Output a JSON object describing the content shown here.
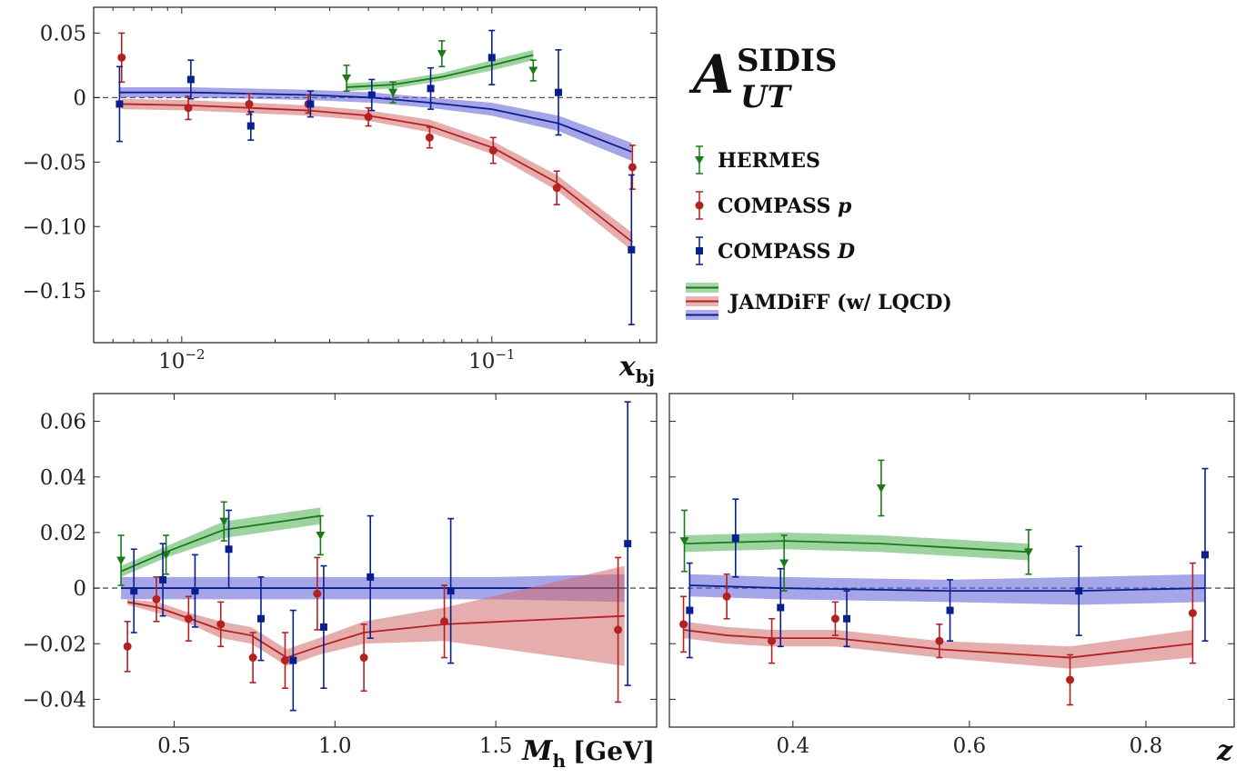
{
  "title": {
    "main": "A",
    "sup": "SIDIS",
    "sub": "UT"
  },
  "colors": {
    "hermes": "#1a7a1a",
    "compass_p": "#b22222",
    "compass_d": "#0a1f8f",
    "band_green": "#4caf50",
    "band_red": "#d26a6a",
    "band_blue": "#5b5bd6"
  },
  "legend": [
    {
      "label": "HERMES",
      "italic": "",
      "marker": "triangle",
      "color": "#1a7a1a"
    },
    {
      "label": "COMPASS ",
      "italic": "p",
      "marker": "circle",
      "color": "#b22222"
    },
    {
      "label": "COMPASS ",
      "italic": "D",
      "marker": "square",
      "color": "#0a1f8f"
    }
  ],
  "legend_band_label": "JAMDiFF (w/ LQCD)",
  "chart_data": [
    {
      "id": "x",
      "type": "scatter",
      "xscale": "log",
      "xlim": [
        0.0052,
        0.34
      ],
      "ylim": [
        -0.19,
        0.07
      ],
      "xlabel": "x",
      "xlabel_sub": "bj",
      "xticks": [
        {
          "value": 0.01,
          "base": "10",
          "exp": "−2"
        },
        {
          "value": 0.1,
          "base": "10",
          "exp": "−1"
        }
      ],
      "yticks": [
        {
          "value": 0.05,
          "label": "0.05"
        },
        {
          "value": 0,
          "label": "0"
        },
        {
          "value": -0.05,
          "label": "−0.05"
        },
        {
          "value": -0.1,
          "label": "−0.10"
        },
        {
          "value": -0.15,
          "label": "−0.15"
        }
      ],
      "series": [
        {
          "name": "HERMES",
          "marker": "triangle",
          "color": "#1a7a1a",
          "x": [
            0.034,
            0.048,
            0.069,
            0.136
          ],
          "y": [
            0.015,
            0.004,
            0.034,
            0.021
          ],
          "err": [
            0.01,
            0.008,
            0.01,
            0.008
          ]
        },
        {
          "name": "COMPASS p",
          "marker": "circle",
          "color": "#b22222",
          "x": [
            0.0064,
            0.0105,
            0.0165,
            0.0256,
            0.04,
            0.063,
            0.101,
            0.162,
            0.284
          ],
          "y": [
            0.031,
            -0.008,
            -0.005,
            -0.005,
            -0.015,
            -0.031,
            -0.041,
            -0.07,
            -0.054
          ],
          "err": [
            0.019,
            0.009,
            0.008,
            0.007,
            0.007,
            0.008,
            0.01,
            0.013,
            0.017
          ]
        },
        {
          "name": "COMPASS D",
          "marker": "square",
          "color": "#0a1f8f",
          "x": [
            0.0063,
            0.0107,
            0.0167,
            0.026,
            0.041,
            0.0635,
            0.1,
            0.164,
            0.282
          ],
          "y": [
            -0.005,
            0.014,
            -0.022,
            -0.005,
            0.002,
            0.007,
            0.031,
            0.004,
            -0.118
          ],
          "err": [
            0.029,
            0.015,
            0.011,
            0.01,
            0.012,
            0.016,
            0.021,
            0.033,
            0.058
          ]
        }
      ],
      "bands": [
        {
          "name": "green",
          "color": "#1a7a1a",
          "fill": "#4caf50",
          "x": [
            0.034,
            0.048,
            0.069,
            0.1,
            0.136
          ],
          "y": [
            0.008,
            0.01,
            0.016,
            0.025,
            0.033
          ],
          "w": [
            0.003,
            0.003,
            0.003,
            0.004,
            0.004
          ]
        },
        {
          "name": "red",
          "color": "#b22222",
          "fill": "#d26a6a",
          "x": [
            0.0064,
            0.0105,
            0.0165,
            0.0256,
            0.04,
            0.063,
            0.101,
            0.162,
            0.284
          ],
          "y": [
            -0.005,
            -0.006,
            -0.008,
            -0.01,
            -0.014,
            -0.022,
            -0.039,
            -0.066,
            -0.112
          ],
          "w": [
            0.004,
            0.004,
            0.004,
            0.004,
            0.004,
            0.005,
            0.005,
            0.006,
            0.007
          ]
        },
        {
          "name": "blue",
          "color": "#0a1f8f",
          "fill": "#5b5bd6",
          "x": [
            0.0063,
            0.0107,
            0.0167,
            0.026,
            0.041,
            0.0635,
            0.1,
            0.164,
            0.282
          ],
          "y": [
            0.004,
            0.004,
            0.003,
            0.002,
            0.0,
            -0.004,
            -0.009,
            -0.02,
            -0.042
          ],
          "w": [
            0.004,
            0.004,
            0.004,
            0.004,
            0.004,
            0.004,
            0.005,
            0.006,
            0.007
          ]
        }
      ]
    },
    {
      "id": "mh",
      "type": "scatter",
      "xscale": "linear",
      "xlim": [
        0.25,
        2.0
      ],
      "ylim": [
        -0.05,
        0.07
      ],
      "xlabel": "M",
      "xlabel_sub": "h",
      "xlabel_unit": "[GeV]",
      "xticks": [
        {
          "value": 0.5,
          "label": "0.5"
        },
        {
          "value": 1.0,
          "label": "1.0"
        },
        {
          "value": 1.5,
          "label": "1.5"
        }
      ],
      "yticks": [
        {
          "value": 0.06,
          "label": "0.06"
        },
        {
          "value": 0.04,
          "label": "0.04"
        },
        {
          "value": 0.02,
          "label": "0.02"
        },
        {
          "value": 0,
          "label": "0"
        },
        {
          "value": -0.02,
          "label": "−0.02"
        },
        {
          "value": -0.04,
          "label": "−0.04"
        }
      ],
      "series": [
        {
          "name": "HERMES",
          "marker": "triangle",
          "color": "#1a7a1a",
          "x": [
            0.335,
            0.475,
            0.655,
            0.955
          ],
          "y": [
            0.01,
            0.012,
            0.024,
            0.019
          ],
          "err": [
            0.009,
            0.007,
            0.007,
            0.007
          ]
        },
        {
          "name": "COMPASS p",
          "marker": "circle",
          "color": "#b22222",
          "x": [
            0.355,
            0.445,
            0.545,
            0.645,
            0.745,
            0.845,
            0.945,
            1.09,
            1.34,
            1.88
          ],
          "y": [
            -0.021,
            -0.004,
            -0.011,
            -0.013,
            -0.025,
            -0.026,
            -0.002,
            -0.025,
            -0.012,
            -0.015
          ],
          "err": [
            0.009,
            0.008,
            0.008,
            0.008,
            0.009,
            0.01,
            0.013,
            0.012,
            0.013,
            0.026
          ]
        },
        {
          "name": "COMPASS D",
          "marker": "square",
          "color": "#0a1f8f",
          "x": [
            0.375,
            0.465,
            0.565,
            0.67,
            0.77,
            0.87,
            0.965,
            1.11,
            1.36,
            1.91
          ],
          "y": [
            -0.001,
            0.003,
            -0.001,
            0.014,
            -0.011,
            -0.026,
            -0.014,
            0.004,
            -0.001,
            0.016
          ],
          "err": [
            0.015,
            0.013,
            0.013,
            0.014,
            0.015,
            0.018,
            0.022,
            0.022,
            0.026,
            0.051
          ]
        }
      ],
      "bands": [
        {
          "name": "green",
          "color": "#1a7a1a",
          "fill": "#4caf50",
          "x": [
            0.335,
            0.475,
            0.655,
            0.955
          ],
          "y": [
            0.006,
            0.013,
            0.021,
            0.026
          ],
          "w": [
            0.002,
            0.002,
            0.003,
            0.003
          ]
        },
        {
          "name": "blue",
          "color": "#0a1f8f",
          "fill": "#5b5bd6",
          "x": [
            0.335,
            0.6,
            0.9,
            1.2,
            1.5,
            1.9
          ],
          "y": [
            0.0,
            0.0,
            0.0,
            0.0,
            0.0,
            0.0
          ],
          "w": [
            0.004,
            0.004,
            0.004,
            0.004,
            0.004,
            0.005
          ]
        },
        {
          "name": "red",
          "color": "#b22222",
          "fill": "#d26a6a",
          "x": [
            0.355,
            0.45,
            0.55,
            0.645,
            0.74,
            0.85,
            0.95,
            1.09,
            1.34,
            1.9
          ],
          "y": [
            -0.005,
            -0.007,
            -0.011,
            -0.015,
            -0.017,
            -0.025,
            -0.021,
            -0.016,
            -0.013,
            -0.01
          ],
          "w": [
            0.001,
            0.002,
            0.002,
            0.003,
            0.003,
            0.003,
            0.003,
            0.004,
            0.006,
            0.018
          ]
        }
      ]
    },
    {
      "id": "z",
      "type": "scatter",
      "xscale": "linear",
      "xlim": [
        0.26,
        0.9
      ],
      "ylim": [
        -0.05,
        0.07
      ],
      "xlabel": "z",
      "xlabel_sub": "",
      "xticks": [
        {
          "value": 0.4,
          "label": "0.4"
        },
        {
          "value": 0.6,
          "label": "0.6"
        },
        {
          "value": 0.8,
          "label": "0.8"
        }
      ],
      "yticks": [],
      "series": [
        {
          "name": "HERMES",
          "marker": "triangle",
          "color": "#1a7a1a",
          "x": [
            0.277,
            0.39,
            0.5,
            0.667
          ],
          "y": [
            0.017,
            0.009,
            0.036,
            0.013
          ],
          "err": [
            0.011,
            0.01,
            0.01,
            0.008
          ]
        },
        {
          "name": "COMPASS p",
          "marker": "circle",
          "color": "#b22222",
          "x": [
            0.276,
            0.325,
            0.376,
            0.448,
            0.566,
            0.714,
            0.853
          ],
          "y": [
            -0.013,
            -0.003,
            -0.019,
            -0.011,
            -0.019,
            -0.033,
            -0.009
          ],
          "err": [
            0.01,
            0.008,
            0.008,
            0.006,
            0.006,
            0.009,
            0.018
          ]
        },
        {
          "name": "COMPASS D",
          "marker": "square",
          "color": "#0a1f8f",
          "x": [
            0.283,
            0.335,
            0.386,
            0.461,
            0.578,
            0.724,
            0.867
          ],
          "y": [
            -0.008,
            0.018,
            -0.007,
            -0.011,
            -0.008,
            -0.001,
            0.012
          ],
          "err": [
            0.017,
            0.014,
            0.014,
            0.01,
            0.011,
            0.016,
            0.031
          ]
        }
      ],
      "bands": [
        {
          "name": "green",
          "color": "#1a7a1a",
          "fill": "#4caf50",
          "x": [
            0.277,
            0.39,
            0.5,
            0.667
          ],
          "y": [
            0.016,
            0.017,
            0.016,
            0.013
          ],
          "w": [
            0.003,
            0.003,
            0.003,
            0.003
          ]
        },
        {
          "name": "blue",
          "color": "#0a1f8f",
          "fill": "#5b5bd6",
          "x": [
            0.283,
            0.386,
            0.578,
            0.724,
            0.867
          ],
          "y": [
            0.001,
            0.0,
            -0.001,
            -0.001,
            0.0
          ],
          "w": [
            0.004,
            0.004,
            0.004,
            0.005,
            0.005
          ]
        },
        {
          "name": "red",
          "color": "#b22222",
          "fill": "#d26a6a",
          "x": [
            0.276,
            0.325,
            0.376,
            0.448,
            0.566,
            0.714,
            0.853
          ],
          "y": [
            -0.015,
            -0.017,
            -0.018,
            -0.018,
            -0.022,
            -0.025,
            -0.02
          ],
          "w": [
            0.003,
            0.003,
            0.003,
            0.003,
            0.003,
            0.004,
            0.005
          ]
        }
      ]
    }
  ]
}
